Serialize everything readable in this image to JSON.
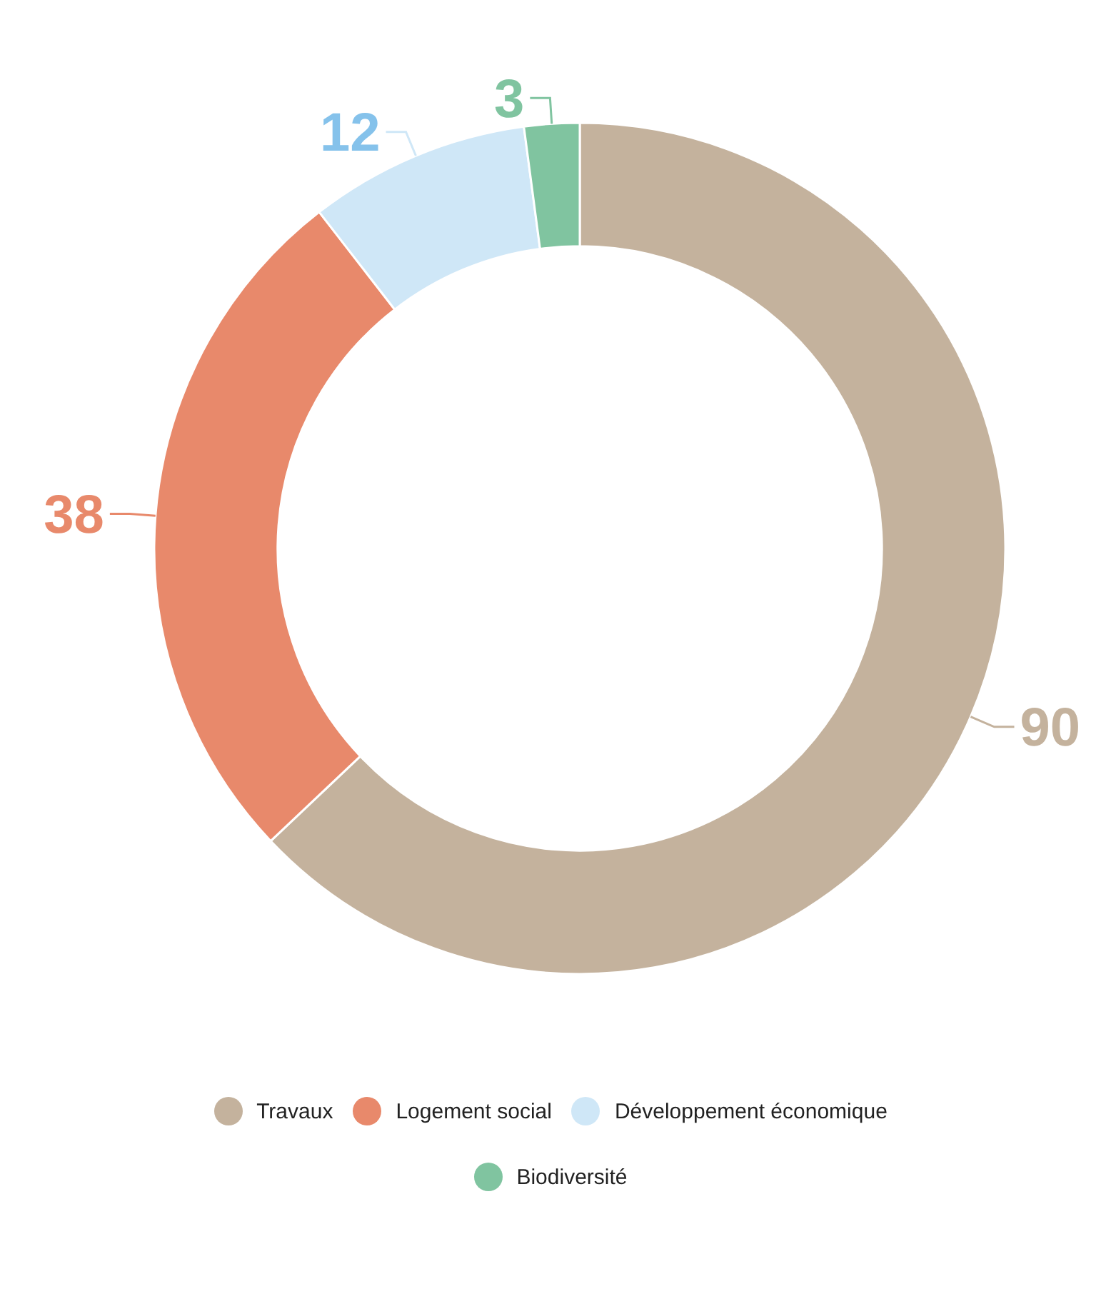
{
  "chart_data": {
    "type": "donut",
    "categories": [
      "Travaux",
      "Logement social",
      "Développement économique",
      "Biodiversité"
    ],
    "values": [
      90,
      38,
      12,
      3
    ],
    "colors": [
      "#c4b29d",
      "#e8896b",
      "#cfe7f7",
      "#80c4a0"
    ],
    "data_labels": true,
    "legend": "bottom"
  }
}
